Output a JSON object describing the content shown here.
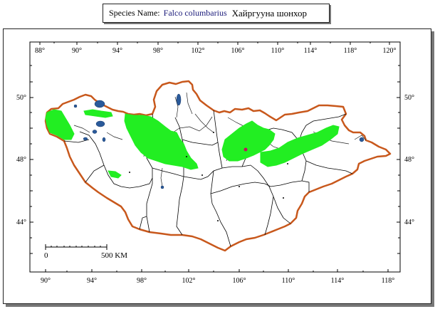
{
  "header": {
    "species_label": "Species Name:",
    "scientific_name": "Falco columbarius",
    "mongolian_name": "Хайргууна шонхор"
  },
  "map": {
    "top_longitudes": [
      "88°",
      "90°",
      "94°",
      "98°",
      "102°",
      "106°",
      "110°",
      "114°",
      "118°",
      "120°"
    ],
    "bottom_longitudes": [
      "90°",
      "94°",
      "98°",
      "102°",
      "106°",
      "110°",
      "114°",
      "118°"
    ],
    "left_latitudes": [
      "50°",
      "48°",
      "44°"
    ],
    "right_latitudes": [
      "50°",
      "48°",
      "44°"
    ],
    "scale_start": "0",
    "scale_end": "500 KM",
    "colors": {
      "border": "#c8581c",
      "range": "#22ee22",
      "water": "#2a5a9a",
      "admin_lines": "#000000"
    }
  }
}
